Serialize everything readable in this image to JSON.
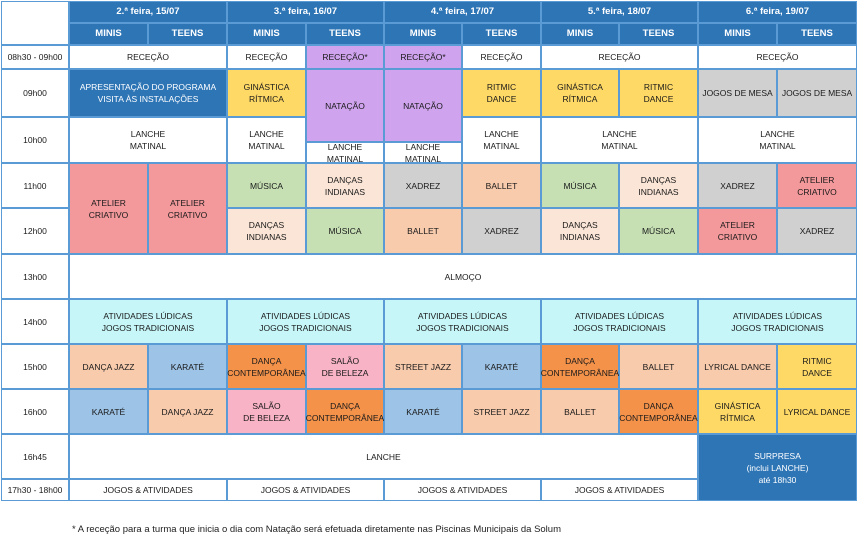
{
  "colors": {
    "header": "#2e75b6",
    "blue_block": "#2e75b6",
    "gold": "#ffd966",
    "purple": "#cfa3ee",
    "lightblue": "#c6f6f8",
    "salmon_red": "#f4999b",
    "green": "#c6e0b4",
    "peach": "#fbe5d6",
    "grey": "#d0d0d0",
    "apricot": "#f8cbad",
    "steelblue": "#9dc3e6",
    "orange": "#f4924a",
    "pink": "#f8b3c6",
    "white": "#ffffff"
  },
  "days": [
    "2.ª feira, 15/07",
    "3.ª feira, 16/07",
    "4.ª feira, 17/07",
    "5.ª feira, 18/07",
    "6.ª feira, 19/07"
  ],
  "groups": [
    "MINIS",
    "TEENS"
  ],
  "times": [
    "08h30 - 09h00",
    "09h00",
    "10h00",
    "11h00",
    "12h00",
    "13h00",
    "14h00",
    "15h00",
    "16h00",
    "16h45",
    "17h30 - 18h00"
  ],
  "cells": [
    {
      "row": 0,
      "col": 0,
      "rs": 1,
      "cs": 2,
      "text": "RECEÇÃO",
      "color": "white"
    },
    {
      "row": 0,
      "col": 2,
      "rs": 1,
      "cs": 1,
      "text": "RECEÇÃO",
      "color": "white"
    },
    {
      "row": 0,
      "col": 3,
      "rs": 1,
      "cs": 1,
      "text": "RECEÇÃO*",
      "color": "purple"
    },
    {
      "row": 0,
      "col": 4,
      "rs": 1,
      "cs": 1,
      "text": "RECEÇÃO*",
      "color": "purple"
    },
    {
      "row": 0,
      "col": 5,
      "rs": 1,
      "cs": 1,
      "text": "RECEÇÃO",
      "color": "white"
    },
    {
      "row": 0,
      "col": 6,
      "rs": 1,
      "cs": 2,
      "text": "RECEÇÃO",
      "color": "white"
    },
    {
      "row": 0,
      "col": 8,
      "rs": 1,
      "cs": 2,
      "text": "RECEÇÃO",
      "color": "white"
    },
    {
      "row": 1,
      "col": 0,
      "rs": 1,
      "cs": 2,
      "text": "APRESENTAÇÃO DO PROGRAMA\nVISITA ÀS INSTALAÇÕES",
      "color": "blue_block",
      "light": true
    },
    {
      "row": 1,
      "col": 2,
      "rs": 1,
      "cs": 1,
      "text": "GINÁSTICA\nRÍTMICA",
      "color": "gold"
    },
    {
      "row": 1,
      "col": 3,
      "rs": 1,
      "cs": 1,
      "text": "NATAÇÃO",
      "color": "purple",
      "extend": 0.55
    },
    {
      "row": 1,
      "col": 4,
      "rs": 1,
      "cs": 1,
      "text": "NATAÇÃO",
      "color": "purple",
      "extend": 0.55
    },
    {
      "row": 1,
      "col": 5,
      "rs": 1,
      "cs": 1,
      "text": "RITMIC\nDANCE",
      "color": "gold"
    },
    {
      "row": 1,
      "col": 6,
      "rs": 1,
      "cs": 1,
      "text": "GINÁSTICA\nRÍTMICA",
      "color": "gold"
    },
    {
      "row": 1,
      "col": 7,
      "rs": 1,
      "cs": 1,
      "text": "RITMIC\nDANCE",
      "color": "gold"
    },
    {
      "row": 1,
      "col": 8,
      "rs": 1,
      "cs": 1,
      "text": "JOGOS DE MESA",
      "color": "grey"
    },
    {
      "row": 1,
      "col": 9,
      "rs": 1,
      "cs": 1,
      "text": "JOGOS DE MESA",
      "color": "grey"
    },
    {
      "row": 2,
      "col": 0,
      "rs": 1,
      "cs": 2,
      "text": "LANCHE\nMATINAL",
      "color": "white"
    },
    {
      "row": 2,
      "col": 2,
      "rs": 1,
      "cs": 1,
      "text": "LANCHE\nMATINAL",
      "color": "white"
    },
    {
      "row": 2,
      "col": 3,
      "rs": 1,
      "cs": 1,
      "text": "LANCHE\nMATINAL",
      "color": "white",
      "trimTop": 0.55
    },
    {
      "row": 2,
      "col": 4,
      "rs": 1,
      "cs": 1,
      "text": "LANCHE\nMATINAL",
      "color": "white",
      "trimTop": 0.55
    },
    {
      "row": 2,
      "col": 5,
      "rs": 1,
      "cs": 1,
      "text": "LANCHE\nMATINAL",
      "color": "white"
    },
    {
      "row": 2,
      "col": 6,
      "rs": 1,
      "cs": 2,
      "text": "LANCHE\nMATINAL",
      "color": "white"
    },
    {
      "row": 2,
      "col": 8,
      "rs": 1,
      "cs": 2,
      "text": "LANCHE\nMATINAL",
      "color": "white"
    },
    {
      "row": 3,
      "col": 0,
      "rs": 2,
      "cs": 1,
      "text": "ATELIER\nCRIATIVO",
      "color": "salmon_red"
    },
    {
      "row": 3,
      "col": 1,
      "rs": 2,
      "cs": 1,
      "text": "ATELIER\nCRIATIVO",
      "color": "salmon_red"
    },
    {
      "row": 3,
      "col": 2,
      "rs": 1,
      "cs": 1,
      "text": "MÚSICA",
      "color": "green"
    },
    {
      "row": 3,
      "col": 3,
      "rs": 1,
      "cs": 1,
      "text": "DANÇAS\nINDIANAS",
      "color": "peach"
    },
    {
      "row": 3,
      "col": 4,
      "rs": 1,
      "cs": 1,
      "text": "XADREZ",
      "color": "grey"
    },
    {
      "row": 3,
      "col": 5,
      "rs": 1,
      "cs": 1,
      "text": "BALLET",
      "color": "apricot"
    },
    {
      "row": 3,
      "col": 6,
      "rs": 1,
      "cs": 1,
      "text": "MÚSICA",
      "color": "green"
    },
    {
      "row": 3,
      "col": 7,
      "rs": 1,
      "cs": 1,
      "text": "DANÇAS\nINDIANAS",
      "color": "peach"
    },
    {
      "row": 3,
      "col": 8,
      "rs": 1,
      "cs": 1,
      "text": "XADREZ",
      "color": "grey"
    },
    {
      "row": 3,
      "col": 9,
      "rs": 1,
      "cs": 1,
      "text": "ATELIER\nCRIATIVO",
      "color": "salmon_red"
    },
    {
      "row": 4,
      "col": 2,
      "rs": 1,
      "cs": 1,
      "text": "DANÇAS\nINDIANAS",
      "color": "peach"
    },
    {
      "row": 4,
      "col": 3,
      "rs": 1,
      "cs": 1,
      "text": "MÚSICA",
      "color": "green"
    },
    {
      "row": 4,
      "col": 4,
      "rs": 1,
      "cs": 1,
      "text": "BALLET",
      "color": "apricot"
    },
    {
      "row": 4,
      "col": 5,
      "rs": 1,
      "cs": 1,
      "text": "XADREZ",
      "color": "grey"
    },
    {
      "row": 4,
      "col": 6,
      "rs": 1,
      "cs": 1,
      "text": "DANÇAS\nINDIANAS",
      "color": "peach"
    },
    {
      "row": 4,
      "col": 7,
      "rs": 1,
      "cs": 1,
      "text": "MÚSICA",
      "color": "green"
    },
    {
      "row": 4,
      "col": 8,
      "rs": 1,
      "cs": 1,
      "text": "ATELIER\nCRIATIVO",
      "color": "salmon_red"
    },
    {
      "row": 4,
      "col": 9,
      "rs": 1,
      "cs": 1,
      "text": "XADREZ",
      "color": "grey"
    },
    {
      "row": 5,
      "col": 0,
      "rs": 1,
      "cs": 10,
      "text": "ALMOÇO",
      "color": "white"
    },
    {
      "row": 6,
      "col": 0,
      "rs": 1,
      "cs": 2,
      "text": "ATIVIDADES LÚDICAS\nJOGOS TRADICIONAIS",
      "color": "lightblue"
    },
    {
      "row": 6,
      "col": 2,
      "rs": 1,
      "cs": 2,
      "text": "ATIVIDADES LÚDICAS\nJOGOS TRADICIONAIS",
      "color": "lightblue"
    },
    {
      "row": 6,
      "col": 4,
      "rs": 1,
      "cs": 2,
      "text": "ATIVIDADES LÚDICAS\nJOGOS TRADICIONAIS",
      "color": "lightblue"
    },
    {
      "row": 6,
      "col": 6,
      "rs": 1,
      "cs": 2,
      "text": "ATIVIDADES LÚDICAS\nJOGOS TRADICIONAIS",
      "color": "lightblue"
    },
    {
      "row": 6,
      "col": 8,
      "rs": 1,
      "cs": 2,
      "text": "ATIVIDADES LÚDICAS\nJOGOS TRADICIONAIS",
      "color": "lightblue"
    },
    {
      "row": 7,
      "col": 0,
      "rs": 1,
      "cs": 1,
      "text": "DANÇA JAZZ",
      "color": "apricot"
    },
    {
      "row": 7,
      "col": 1,
      "rs": 1,
      "cs": 1,
      "text": "KARATÉ",
      "color": "steelblue"
    },
    {
      "row": 7,
      "col": 2,
      "rs": 1,
      "cs": 1,
      "text": "DANÇA\nCONTEMPORÂNEA",
      "color": "orange"
    },
    {
      "row": 7,
      "col": 3,
      "rs": 1,
      "cs": 1,
      "text": "SALÃO\nDE BELEZA",
      "color": "pink"
    },
    {
      "row": 7,
      "col": 4,
      "rs": 1,
      "cs": 1,
      "text": "STREET JAZZ",
      "color": "apricot"
    },
    {
      "row": 7,
      "col": 5,
      "rs": 1,
      "cs": 1,
      "text": "KARATÉ",
      "color": "steelblue"
    },
    {
      "row": 7,
      "col": 6,
      "rs": 1,
      "cs": 1,
      "text": "DANÇA\nCONTEMPORÂNEA",
      "color": "orange"
    },
    {
      "row": 7,
      "col": 7,
      "rs": 1,
      "cs": 1,
      "text": "BALLET",
      "color": "apricot"
    },
    {
      "row": 7,
      "col": 8,
      "rs": 1,
      "cs": 1,
      "text": "LYRICAL DANCE",
      "color": "apricot"
    },
    {
      "row": 7,
      "col": 9,
      "rs": 1,
      "cs": 1,
      "text": "RITMIC\nDANCE",
      "color": "gold"
    },
    {
      "row": 8,
      "col": 0,
      "rs": 1,
      "cs": 1,
      "text": "KARATÉ",
      "color": "steelblue"
    },
    {
      "row": 8,
      "col": 1,
      "rs": 1,
      "cs": 1,
      "text": "DANÇA JAZZ",
      "color": "apricot"
    },
    {
      "row": 8,
      "col": 2,
      "rs": 1,
      "cs": 1,
      "text": "SALÃO\nDE BELEZA",
      "color": "pink"
    },
    {
      "row": 8,
      "col": 3,
      "rs": 1,
      "cs": 1,
      "text": "DANÇA\nCONTEMPORÂNEA",
      "color": "orange"
    },
    {
      "row": 8,
      "col": 4,
      "rs": 1,
      "cs": 1,
      "text": "KARATÉ",
      "color": "steelblue"
    },
    {
      "row": 8,
      "col": 5,
      "rs": 1,
      "cs": 1,
      "text": "STREET JAZZ",
      "color": "apricot"
    },
    {
      "row": 8,
      "col": 6,
      "rs": 1,
      "cs": 1,
      "text": "BALLET",
      "color": "apricot"
    },
    {
      "row": 8,
      "col": 7,
      "rs": 1,
      "cs": 1,
      "text": "DANÇA\nCONTEMPORÂNEA",
      "color": "orange"
    },
    {
      "row": 8,
      "col": 8,
      "rs": 1,
      "cs": 1,
      "text": "GINÁSTICA\nRÍTMICA",
      "color": "gold"
    },
    {
      "row": 8,
      "col": 9,
      "rs": 1,
      "cs": 1,
      "text": "LYRICAL DANCE",
      "color": "gold"
    },
    {
      "row": 9,
      "col": 0,
      "rs": 1,
      "cs": 8,
      "text": "LANCHE",
      "color": "white"
    },
    {
      "row": 9,
      "col": 8,
      "rs": 2,
      "cs": 2,
      "text": "SURPRESA\n(inclui LANCHE)\naté 18h30",
      "color": "blue_block",
      "light": true
    },
    {
      "row": 10,
      "col": 0,
      "rs": 1,
      "cs": 2,
      "text": "JOGOS & ATIVIDADES",
      "color": "white"
    },
    {
      "row": 10,
      "col": 2,
      "rs": 1,
      "cs": 2,
      "text": "JOGOS & ATIVIDADES",
      "color": "white"
    },
    {
      "row": 10,
      "col": 4,
      "rs": 1,
      "cs": 2,
      "text": "JOGOS & ATIVIDADES",
      "color": "white"
    },
    {
      "row": 10,
      "col": 6,
      "rs": 1,
      "cs": 2,
      "text": "JOGOS & ATIVIDADES",
      "color": "white"
    }
  ],
  "footnote": "* A receção para a turma que inicia o dia com Natação será efetuada diretamente nas Piscinas Municipais da Solum"
}
